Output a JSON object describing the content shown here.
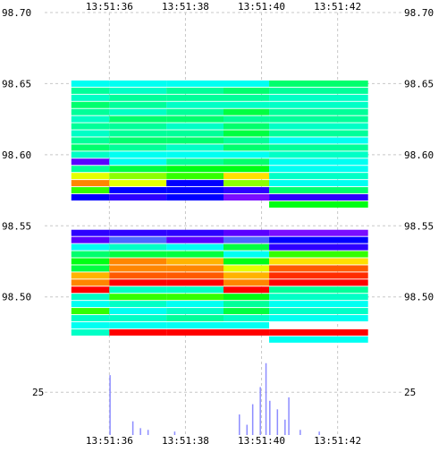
{
  "chart_data": {
    "type": "heatmap",
    "title": "",
    "xlabel": "",
    "ylabel": "",
    "x_ticks": [
      "13:51:36",
      "13:51:38",
      "13:51:40",
      "13:51:42"
    ],
    "x_range": [
      "13:51:34.3",
      "13:51:43.7"
    ],
    "price_ticks": [
      "98.70",
      "98.65",
      "98.60",
      "98.55",
      "98.50"
    ],
    "price_range": [
      98.457,
      98.7
    ],
    "volume_ticks": [
      "25"
    ],
    "volume_range": [
      0,
      45
    ],
    "grid": true,
    "colorscale": [
      "#0000ff",
      "#8000ff",
      "#00ffff",
      "#00ff80",
      "#00ff00",
      "#ffff00",
      "#ff8000",
      "#ff0000"
    ],
    "heat_columns": [
      {
        "t0": "13:51:35.0",
        "t1": "13:51:36.0",
        "cells": [
          {
            "p": 98.65,
            "v": 0.3
          },
          {
            "p": 98.645,
            "v": 0.4
          },
          {
            "p": 98.64,
            "v": 0.35
          },
          {
            "p": 98.635,
            "v": 0.45
          },
          {
            "p": 98.63,
            "v": 0.4
          },
          {
            "p": 98.625,
            "v": 0.35
          },
          {
            "p": 98.62,
            "v": 0.4
          },
          {
            "p": 98.615,
            "v": 0.35
          },
          {
            "p": 98.61,
            "v": 0.4
          },
          {
            "p": 98.605,
            "v": 0.45
          },
          {
            "p": 98.6,
            "v": 0.35
          },
          {
            "p": 98.595,
            "v": 0.1
          },
          {
            "p": 98.59,
            "v": 0.4
          },
          {
            "p": 98.585,
            "v": 0.7
          },
          {
            "p": 98.58,
            "v": 0.85
          },
          {
            "p": 98.575,
            "v": 0.6
          },
          {
            "p": 98.57,
            "v": 0.0
          },
          {
            "p": 98.545,
            "v": 0.05
          },
          {
            "p": 98.54,
            "v": 0.1
          },
          {
            "p": 98.535,
            "v": 0.3
          },
          {
            "p": 98.53,
            "v": 0.45
          },
          {
            "p": 98.525,
            "v": 0.55
          },
          {
            "p": 98.52,
            "v": 0.5
          },
          {
            "p": 98.515,
            "v": 0.8
          },
          {
            "p": 98.51,
            "v": 0.85
          },
          {
            "p": 98.505,
            "v": 1.0
          },
          {
            "p": 98.5,
            "v": 0.35
          },
          {
            "p": 98.495,
            "v": 0.3
          },
          {
            "p": 98.49,
            "v": 0.6
          },
          {
            "p": 98.485,
            "v": 0.35
          },
          {
            "p": 98.48,
            "v": 0.3
          },
          {
            "p": 98.475,
            "v": 0.35
          }
        ]
      },
      {
        "t0": "13:51:36.0",
        "t1": "13:51:37.5",
        "cells": [
          {
            "p": 98.65,
            "v": 0.3
          },
          {
            "p": 98.645,
            "v": 0.35
          },
          {
            "p": 98.64,
            "v": 0.4
          },
          {
            "p": 98.635,
            "v": 0.4
          },
          {
            "p": 98.63,
            "v": 0.35
          },
          {
            "p": 98.625,
            "v": 0.45
          },
          {
            "p": 98.62,
            "v": 0.4
          },
          {
            "p": 98.615,
            "v": 0.4
          },
          {
            "p": 98.61,
            "v": 0.45
          },
          {
            "p": 98.605,
            "v": 0.4
          },
          {
            "p": 98.6,
            "v": 0.3
          },
          {
            "p": 98.595,
            "v": 0.3
          },
          {
            "p": 98.59,
            "v": 0.5
          },
          {
            "p": 98.585,
            "v": 0.65
          },
          {
            "p": 98.58,
            "v": 0.7
          },
          {
            "p": 98.575,
            "v": 0.0
          },
          {
            "p": 98.57,
            "v": 0.05
          },
          {
            "p": 98.545,
            "v": 0.05
          },
          {
            "p": 98.54,
            "v": 0.2
          },
          {
            "p": 98.535,
            "v": 0.35
          },
          {
            "p": 98.53,
            "v": 0.5
          },
          {
            "p": 98.525,
            "v": 0.85
          },
          {
            "p": 98.52,
            "v": 0.85
          },
          {
            "p": 98.515,
            "v": 0.9
          },
          {
            "p": 98.51,
            "v": 1.0
          },
          {
            "p": 98.505,
            "v": 0.35
          },
          {
            "p": 98.5,
            "v": 0.6
          },
          {
            "p": 98.495,
            "v": 0.35
          },
          {
            "p": 98.49,
            "v": 0.3
          },
          {
            "p": 98.485,
            "v": 0.35
          },
          {
            "p": 98.48,
            "v": 0.3
          },
          {
            "p": 98.475,
            "v": 1.0
          }
        ]
      },
      {
        "t0": "13:51:37.5",
        "t1": "13:51:39.0",
        "cells": [
          {
            "p": 98.65,
            "v": 0.3
          },
          {
            "p": 98.645,
            "v": 0.4
          },
          {
            "p": 98.64,
            "v": 0.4
          },
          {
            "p": 98.635,
            "v": 0.35
          },
          {
            "p": 98.63,
            "v": 0.4
          },
          {
            "p": 98.625,
            "v": 0.45
          },
          {
            "p": 98.62,
            "v": 0.35
          },
          {
            "p": 98.615,
            "v": 0.4
          },
          {
            "p": 98.61,
            "v": 0.45
          },
          {
            "p": 98.605,
            "v": 0.35
          },
          {
            "p": 98.6,
            "v": 0.3
          },
          {
            "p": 98.595,
            "v": 0.4
          },
          {
            "p": 98.59,
            "v": 0.55
          },
          {
            "p": 98.585,
            "v": 0.6
          },
          {
            "p": 98.58,
            "v": 0.0
          },
          {
            "p": 98.575,
            "v": 0.0
          },
          {
            "p": 98.57,
            "v": 0.0
          },
          {
            "p": 98.545,
            "v": 0.05
          },
          {
            "p": 98.54,
            "v": 0.1
          },
          {
            "p": 98.535,
            "v": 0.3
          },
          {
            "p": 98.53,
            "v": 0.5
          },
          {
            "p": 98.525,
            "v": 0.8
          },
          {
            "p": 98.52,
            "v": 0.85
          },
          {
            "p": 98.515,
            "v": 0.9
          },
          {
            "p": 98.51,
            "v": 1.0
          },
          {
            "p": 98.505,
            "v": 0.35
          },
          {
            "p": 98.5,
            "v": 0.6
          },
          {
            "p": 98.495,
            "v": 0.3
          },
          {
            "p": 98.49,
            "v": 0.35
          },
          {
            "p": 98.485,
            "v": 0.4
          },
          {
            "p": 98.48,
            "v": 0.3
          },
          {
            "p": 98.475,
            "v": 1.0
          }
        ]
      },
      {
        "t0": "13:51:39.0",
        "t1": "13:51:40.2",
        "cells": [
          {
            "p": 98.65,
            "v": 0.3
          },
          {
            "p": 98.645,
            "v": 0.45
          },
          {
            "p": 98.64,
            "v": 0.4
          },
          {
            "p": 98.635,
            "v": 0.35
          },
          {
            "p": 98.63,
            "v": 0.5
          },
          {
            "p": 98.625,
            "v": 0.4
          },
          {
            "p": 98.62,
            "v": 0.45
          },
          {
            "p": 98.615,
            "v": 0.5
          },
          {
            "p": 98.61,
            "v": 0.4
          },
          {
            "p": 98.605,
            "v": 0.45
          },
          {
            "p": 98.6,
            "v": 0.3
          },
          {
            "p": 98.595,
            "v": 0.45
          },
          {
            "p": 98.59,
            "v": 0.55
          },
          {
            "p": 98.585,
            "v": 0.75
          },
          {
            "p": 98.58,
            "v": 0.65
          },
          {
            "p": 98.575,
            "v": 0.05
          },
          {
            "p": 98.57,
            "v": 0.15
          },
          {
            "p": 98.545,
            "v": 0.1
          },
          {
            "p": 98.54,
            "v": 0.2
          },
          {
            "p": 98.535,
            "v": 0.5
          },
          {
            "p": 98.53,
            "v": 0.3
          },
          {
            "p": 98.525,
            "v": 0.55
          },
          {
            "p": 98.52,
            "v": 0.7
          },
          {
            "p": 98.515,
            "v": 0.8
          },
          {
            "p": 98.51,
            "v": 0.85
          },
          {
            "p": 98.505,
            "v": 1.0
          },
          {
            "p": 98.5,
            "v": 0.55
          },
          {
            "p": 98.495,
            "v": 0.4
          },
          {
            "p": 98.49,
            "v": 0.5
          },
          {
            "p": 98.485,
            "v": 0.35
          },
          {
            "p": 98.48,
            "v": 0.3
          },
          {
            "p": 98.475,
            "v": 1.0
          }
        ]
      },
      {
        "t0": "13:51:40.2",
        "t1": "13:51:42.8",
        "cells": [
          {
            "p": 98.65,
            "v": 0.45
          },
          {
            "p": 98.645,
            "v": 0.4
          },
          {
            "p": 98.64,
            "v": 0.35
          },
          {
            "p": 98.635,
            "v": 0.35
          },
          {
            "p": 98.63,
            "v": 0.4
          },
          {
            "p": 98.625,
            "v": 0.4
          },
          {
            "p": 98.62,
            "v": 0.35
          },
          {
            "p": 98.615,
            "v": 0.4
          },
          {
            "p": 98.61,
            "v": 0.3
          },
          {
            "p": 98.605,
            "v": 0.4
          },
          {
            "p": 98.6,
            "v": 0.35
          },
          {
            "p": 98.595,
            "v": 0.3
          },
          {
            "p": 98.59,
            "v": 0.3
          },
          {
            "p": 98.585,
            "v": 0.35
          },
          {
            "p": 98.58,
            "v": 0.3
          },
          {
            "p": 98.575,
            "v": 0.45
          },
          {
            "p": 98.57,
            "v": 0.05
          },
          {
            "p": 98.565,
            "v": 0.55
          },
          {
            "p": 98.545,
            "v": 0.15
          },
          {
            "p": 98.54,
            "v": 0.0
          },
          {
            "p": 98.535,
            "v": 0.05
          },
          {
            "p": 98.53,
            "v": 0.6
          },
          {
            "p": 98.525,
            "v": 0.75
          },
          {
            "p": 98.52,
            "v": 0.9
          },
          {
            "p": 98.515,
            "v": 0.95
          },
          {
            "p": 98.51,
            "v": 1.0
          },
          {
            "p": 98.505,
            "v": 0.4
          },
          {
            "p": 98.5,
            "v": 0.35
          },
          {
            "p": 98.495,
            "v": 0.3
          },
          {
            "p": 98.49,
            "v": 0.35
          },
          {
            "p": 98.485,
            "v": 0.3
          },
          {
            "p": 98.475,
            "v": 1.0
          },
          {
            "p": 98.47,
            "v": 0.3
          }
        ]
      }
    ],
    "volume_bars": [
      {
        "t": "13:51:36.0",
        "v": 35
      },
      {
        "t": "13:51:36.6",
        "v": 8
      },
      {
        "t": "13:51:36.8",
        "v": 4
      },
      {
        "t": "13:51:37.0",
        "v": 3
      },
      {
        "t": "13:51:37.7",
        "v": 2
      },
      {
        "t": "13:51:39.4",
        "v": 12
      },
      {
        "t": "13:51:39.6",
        "v": 6
      },
      {
        "t": "13:51:39.75",
        "v": 18
      },
      {
        "t": "13:51:39.95",
        "v": 28
      },
      {
        "t": "13:51:40.1",
        "v": 42
      },
      {
        "t": "13:51:40.2",
        "v": 20
      },
      {
        "t": "13:51:40.4",
        "v": 15
      },
      {
        "t": "13:51:40.6",
        "v": 9
      },
      {
        "t": "13:51:40.7",
        "v": 22
      },
      {
        "t": "13:51:41.0",
        "v": 3
      },
      {
        "t": "13:51:41.5",
        "v": 2
      }
    ]
  }
}
